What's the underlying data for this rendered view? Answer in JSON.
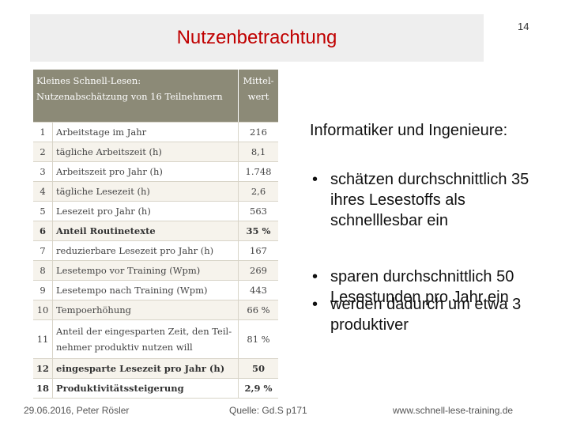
{
  "header": {
    "title": "Nutzenbetrachtung",
    "page_number": "14"
  },
  "table": {
    "columns": [
      "Kleines Schnell-Lesen: Nutzenabschätzung von 16 Teilnehmern",
      "Mittel-wert"
    ],
    "rows": [
      [
        "1",
        "Arbeitstage im Jahr",
        "216"
      ],
      [
        "2",
        "tägliche Arbeitszeit (h)",
        "8,1"
      ],
      [
        "3",
        "Arbeitszeit pro Jahr (h)",
        "1.748"
      ],
      [
        "4",
        "tägliche Lesezeit (h)",
        "2,6"
      ],
      [
        "5",
        "Lesezeit pro Jahr (h)",
        "563"
      ],
      [
        "6",
        "Anteil Routinetexte",
        "35 %"
      ],
      [
        "7",
        "reduzierbare Lesezeit pro Jahr (h)",
        "167"
      ],
      [
        "8",
        "Lesetempo vor Training (Wpm)",
        "269"
      ],
      [
        "9",
        "Lesetempo nach Training (Wpm)",
        "443"
      ],
      [
        "10",
        "Tempoerhöhung",
        "66 %"
      ],
      [
        "11",
        "Anteil der eingesparten Zeit, den Teil-nehmer produktiv nutzen will",
        "81 %"
      ],
      [
        "12",
        "eingesparte Lesezeit pro Jahr (h)",
        "50"
      ],
      [
        "18",
        "Produktivitätssteigerung",
        "2,9 %"
      ]
    ]
  },
  "content": {
    "intro": "Informatiker und Ingenieure:",
    "bullets": [
      "schätzen durchschnittlich 35 ihres Lesestoffs als schnelllesbar ein",
      "sparen durchschnittlich 50 Lesestunden pro Jahr ein",
      "werden dadurch um etwa 3 produktiver"
    ]
  },
  "footer": {
    "date_author": "29.06.2016, Peter Rösler",
    "source": "Quelle: Gd.S p171",
    "url": "www.schnell-lese-training.de"
  }
}
